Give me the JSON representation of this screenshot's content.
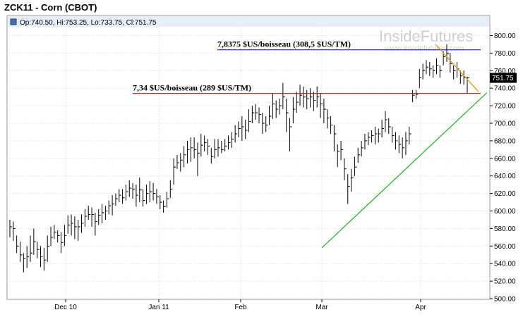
{
  "title": "ZCK11 - Corn (CBOT)",
  "chart_data": {
    "type": "ohlc",
    "ohlc_readout": {
      "open": "740.50",
      "high": "753.25",
      "low": "733.75",
      "close": "751.75",
      "text": "Op:740.50, Hi:753.25, Lo:733.75, Cl:751.75"
    },
    "last_price": "751.75",
    "ylim": [
      500,
      810
    ],
    "y_ticks": [
      "500.00",
      "520.00",
      "540.00",
      "560.00",
      "580.00",
      "600.00",
      "620.00",
      "640.00",
      "660.00",
      "680.00",
      "700.00",
      "720.00",
      "740.00",
      "760.00",
      "780.00",
      "800.00"
    ],
    "x_labels": [
      "Dec 10",
      "Jan 11",
      "Feb",
      "Mar",
      "Apr"
    ],
    "grid": true,
    "bars": [
      [
        590,
        582,
        570
      ],
      [
        588,
        580,
        566
      ],
      [
        572,
        560,
        552
      ],
      [
        565,
        550,
        542
      ],
      [
        552,
        546,
        530
      ],
      [
        560,
        548,
        535
      ],
      [
        572,
        552,
        542
      ],
      [
        580,
        565,
        550
      ],
      [
        565,
        556,
        546
      ],
      [
        560,
        548,
        536
      ],
      [
        558,
        544,
        532
      ],
      [
        572,
        560,
        542
      ],
      [
        582,
        570,
        560
      ],
      [
        584,
        576,
        568
      ],
      [
        578,
        572,
        564
      ],
      [
        576,
        564,
        552
      ],
      [
        584,
        572,
        560
      ],
      [
        595,
        584,
        574
      ],
      [
        596,
        586,
        572
      ],
      [
        594,
        582,
        568
      ],
      [
        590,
        582,
        566
      ],
      [
        596,
        586,
        575
      ],
      [
        602,
        594,
        582
      ],
      [
        606,
        596,
        590
      ],
      [
        604,
        596,
        582
      ],
      [
        598,
        588,
        572
      ],
      [
        602,
        595,
        584
      ],
      [
        608,
        598,
        586
      ],
      [
        606,
        600,
        590
      ],
      [
        612,
        606,
        596
      ],
      [
        618,
        608,
        595
      ],
      [
        620,
        614,
        606
      ],
      [
        625,
        618,
        610
      ],
      [
        625,
        615,
        608
      ],
      [
        630,
        622,
        612
      ],
      [
        635,
        626,
        616
      ],
      [
        632,
        625,
        614
      ],
      [
        630,
        618,
        605
      ],
      [
        638,
        624,
        610
      ],
      [
        625,
        612,
        605
      ],
      [
        630,
        620,
        608
      ],
      [
        634,
        622,
        610
      ],
      [
        632,
        620,
        612
      ],
      [
        625,
        616,
        608
      ],
      [
        618,
        610,
        602
      ],
      [
        612,
        605,
        598
      ],
      [
        622,
        614,
        604
      ],
      [
        635,
        625,
        615
      ],
      [
        660,
        650,
        630
      ],
      [
        664,
        655,
        648
      ],
      [
        666,
        658,
        645
      ],
      [
        674,
        664,
        650
      ],
      [
        680,
        670,
        654
      ],
      [
        684,
        672,
        656
      ],
      [
        684,
        670,
        660
      ],
      [
        678,
        666,
        640
      ],
      [
        688,
        675,
        662
      ],
      [
        686,
        678,
        668
      ],
      [
        682,
        674,
        664
      ],
      [
        672,
        662,
        654
      ],
      [
        682,
        670,
        660
      ],
      [
        682,
        672,
        662
      ],
      [
        680,
        670,
        666
      ],
      [
        682,
        674,
        668
      ],
      [
        686,
        678,
        670
      ],
      [
        690,
        682,
        672
      ],
      [
        698,
        688,
        678
      ],
      [
        702,
        694,
        684
      ],
      [
        708,
        696,
        680
      ],
      [
        704,
        692,
        682
      ],
      [
        716,
        702,
        690
      ],
      [
        720,
        712,
        700
      ],
      [
        722,
        712,
        704
      ],
      [
        718,
        710,
        700
      ],
      [
        712,
        700,
        688
      ],
      [
        708,
        698,
        690
      ],
      [
        720,
        708,
        698
      ],
      [
        734,
        722,
        705
      ],
      [
        726,
        716,
        706
      ],
      [
        728,
        720,
        710
      ],
      [
        746,
        730,
        716
      ],
      [
        728,
        712,
        690
      ],
      [
        706,
        696,
        668
      ],
      [
        730,
        716,
        700
      ],
      [
        736,
        724,
        712
      ],
      [
        744,
        732,
        720
      ],
      [
        742,
        730,
        718
      ],
      [
        738,
        728,
        716
      ],
      [
        740,
        730,
        718
      ],
      [
        736,
        726,
        714
      ],
      [
        742,
        730,
        718
      ],
      [
        734,
        722,
        706
      ],
      [
        728,
        716,
        700
      ],
      [
        716,
        706,
        694
      ],
      [
        708,
        698,
        688
      ],
      [
        698,
        688,
        668
      ],
      [
        676,
        668,
        650
      ],
      [
        680,
        670,
        658
      ],
      [
        660,
        648,
        635
      ],
      [
        642,
        628,
        608
      ],
      [
        648,
        638,
        622
      ],
      [
        662,
        650,
        640
      ],
      [
        672,
        664,
        655
      ],
      [
        680,
        672,
        662
      ],
      [
        688,
        680,
        670
      ],
      [
        690,
        684,
        675
      ],
      [
        692,
        686,
        678
      ],
      [
        696,
        688,
        676
      ],
      [
        694,
        688,
        678
      ],
      [
        704,
        694,
        684
      ],
      [
        714,
        704,
        690
      ],
      [
        706,
        696,
        688
      ],
      [
        696,
        686,
        678
      ],
      [
        690,
        680,
        670
      ],
      [
        686,
        676,
        666
      ],
      [
        684,
        672,
        660
      ],
      [
        690,
        680,
        664
      ],
      [
        696,
        688,
        676
      ],
      [
        738,
        732,
        724
      ],
      [
        738,
        733,
        728
      ],
      [
        762,
        752,
        740
      ],
      [
        768,
        760,
        750
      ],
      [
        772,
        764,
        756
      ],
      [
        770,
        762,
        754
      ],
      [
        766,
        760,
        752
      ],
      [
        774,
        766,
        756
      ],
      [
        766,
        760,
        752
      ],
      [
        782,
        776,
        766
      ],
      [
        790,
        780,
        770
      ],
      [
        780,
        768,
        758
      ],
      [
        766,
        760,
        750
      ],
      [
        770,
        762,
        752
      ],
      [
        760,
        754,
        745
      ],
      [
        760,
        752,
        744
      ],
      [
        753.25,
        751.75,
        733.75
      ]
    ],
    "annotations": [
      {
        "text": "7,8375 $US/boisseau (308,5 $US/TM)",
        "price": 783.75
      },
      {
        "text": "7,34 $US/boisseau (289 $US/TM)",
        "price": 734
      }
    ],
    "trendlines": [
      {
        "name": "support",
        "color": "#2db52d",
        "from": [
          "Mar",
          558
        ],
        "to": [
          "Apr-end",
          735
        ]
      },
      {
        "name": "resistance",
        "color": "#d6a020",
        "from": [
          "Apr",
          790
        ],
        "to": [
          "Apr-end",
          736
        ]
      }
    ]
  },
  "watermark": {
    "main": "InsideFutures",
    "sub": "www.insidefutures.com"
  },
  "colors": {
    "bar": "#000000",
    "grid": "#d9d9d9",
    "blue_line": "#0000cc",
    "red_line": "#cc0000",
    "support": "#2db52d",
    "resistance": "#d6a020",
    "price_box": "#000000",
    "readout_band": "#e6eef8"
  }
}
